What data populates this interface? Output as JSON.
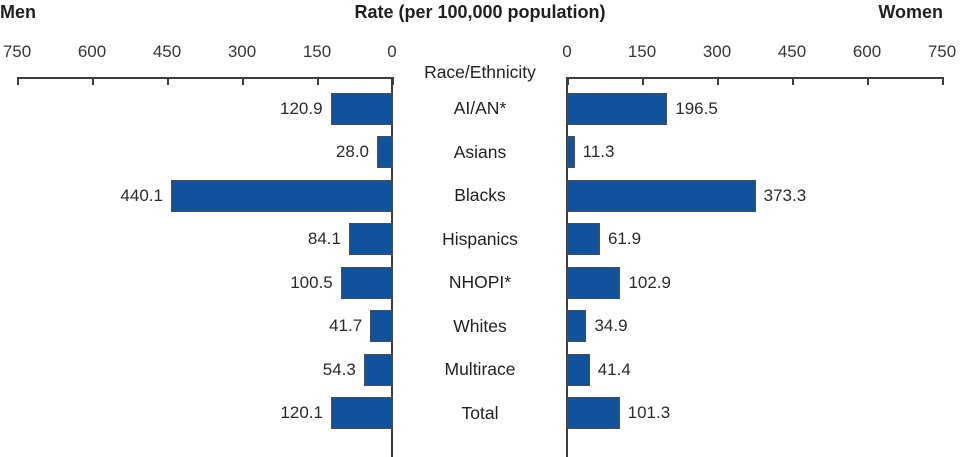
{
  "header": {
    "left_title": "Men",
    "center_title": "Rate (per 100,000 population)",
    "right_title": "Women",
    "axis_label": "Race/Ethnicity"
  },
  "chart_data": {
    "type": "bar",
    "orientation": "horizontal-diverging",
    "title": "Rate (per 100,000 population)",
    "xlabel_left": "Men",
    "xlabel_right": "Women",
    "center_axis_label": "Race/Ethnicity",
    "categories": [
      "AI/AN*",
      "Asians",
      "Blacks",
      "Hispanics",
      "NHOPI*",
      "Whites",
      "Multirace",
      "Total"
    ],
    "series": [
      {
        "name": "Men",
        "values": [
          120.9,
          28.0,
          440.1,
          84.1,
          100.5,
          41.7,
          54.3,
          120.1
        ]
      },
      {
        "name": "Women",
        "values": [
          196.5,
          11.3,
          373.3,
          61.9,
          102.9,
          34.9,
          41.4,
          101.3
        ]
      }
    ],
    "value_labels": {
      "men": [
        "120.9",
        "28.0",
        "440.1",
        "84.1",
        "100.5",
        "41.7",
        "54.3",
        "120.1"
      ],
      "women": [
        "196.5",
        "11.3",
        "373.3",
        "61.9",
        "102.9",
        "34.9",
        "41.4",
        "101.3"
      ]
    },
    "axis": {
      "min": 0,
      "max": 750,
      "tick_interval": 150,
      "men_tick_labels": [
        "750",
        "600",
        "450",
        "300",
        "150",
        "0"
      ],
      "women_tick_labels": [
        "0",
        "150",
        "300",
        "450",
        "600",
        "750"
      ]
    },
    "legend": "none",
    "grid": false,
    "bar_color": "#10529b",
    "bar_border_color": "#4d4d4d",
    "axis_color": "#3d3d3d"
  }
}
